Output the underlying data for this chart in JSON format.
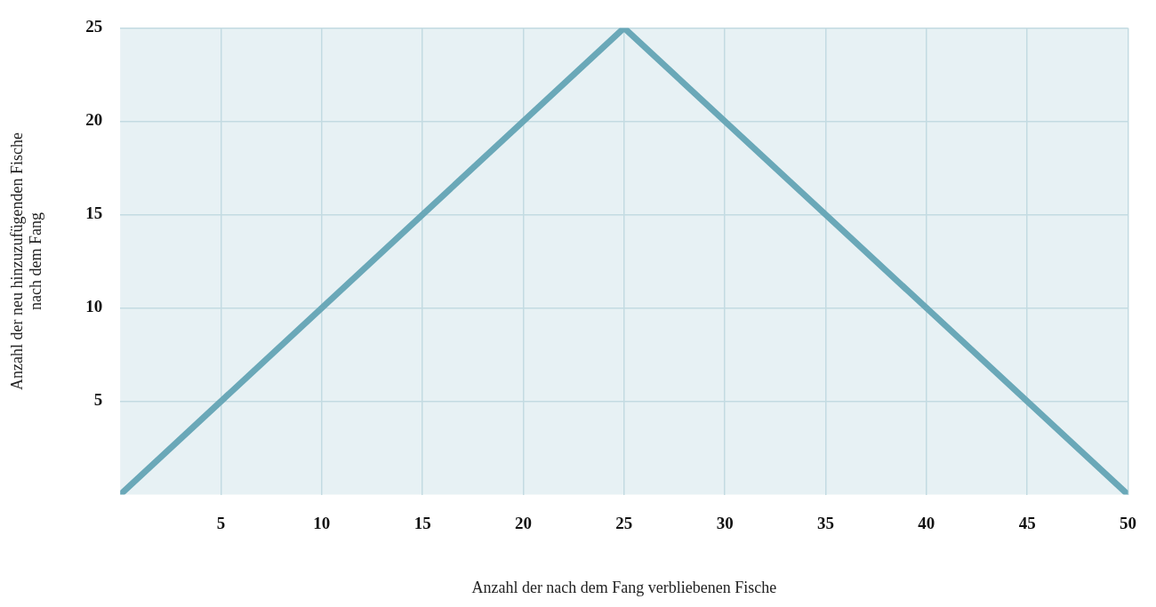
{
  "chart_data": {
    "type": "line",
    "xlabel": "Anzahl der nach dem Fang verbliebenen Fische",
    "ylabel": "Anzahl der neu hinzuzufügenden Fische\nnach dem Fang",
    "x": [
      0,
      25,
      50
    ],
    "series": [
      {
        "color": "#6aa8b8",
        "values": [
          0,
          25,
          0
        ]
      }
    ],
    "xlim": [
      0,
      50
    ],
    "xticks": [
      5,
      10,
      15,
      20,
      25,
      30,
      35,
      40,
      45,
      50
    ],
    "ylim": [
      0,
      25
    ],
    "yticks": [
      5,
      10,
      15,
      20,
      25
    ],
    "grid": true,
    "legend": false,
    "marker": "none",
    "line_style": "solid"
  }
}
